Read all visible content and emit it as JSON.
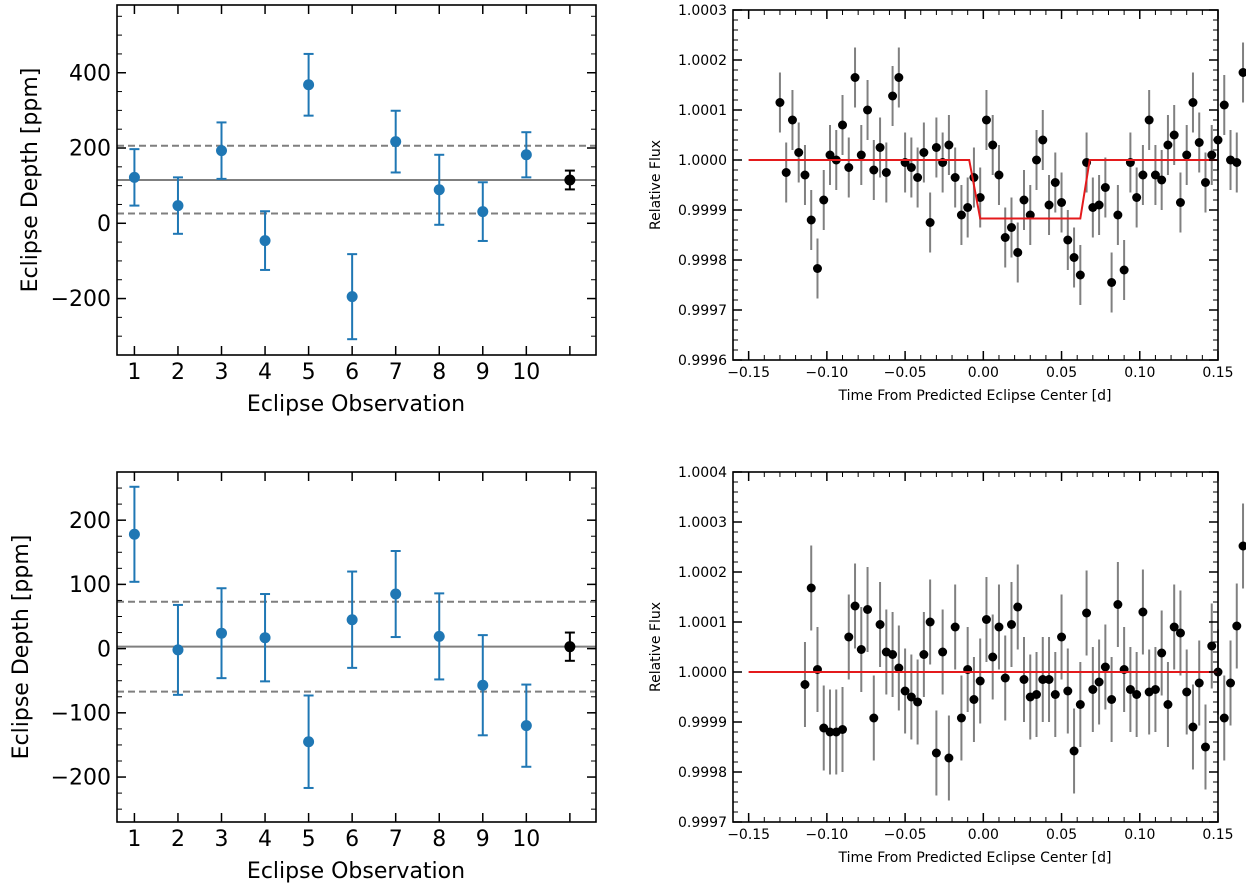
{
  "chart_data": [
    {
      "type": "scatter",
      "panel": "top-left",
      "xlabel": "Eclipse Observation",
      "ylabel": "Eclipse Depth [ppm]",
      "xticks": [
        "1",
        "2",
        "3",
        "4",
        "5",
        "6",
        "7",
        "8",
        "9",
        "10"
      ],
      "xlim": [
        0.6,
        11.6
      ],
      "ylim": [
        -350,
        580
      ],
      "yticks": [
        -200,
        0,
        200,
        400
      ],
      "ytick_labels": [
        "−200",
        "0",
        "200",
        "400"
      ],
      "minor_y_step": 50,
      "grid": false,
      "points": [
        {
          "x": 1,
          "y": 122,
          "err": 75
        },
        {
          "x": 2,
          "y": 47,
          "err": 75
        },
        {
          "x": 3,
          "y": 193,
          "err": 75
        },
        {
          "x": 4,
          "y": -46,
          "err": 78
        },
        {
          "x": 5,
          "y": 368,
          "err": 82
        },
        {
          "x": 6,
          "y": -195,
          "err": 113
        },
        {
          "x": 7,
          "y": 217,
          "err": 82
        },
        {
          "x": 8,
          "y": 89,
          "err": 93
        },
        {
          "x": 9,
          "y": 31,
          "err": 78
        },
        {
          "x": 10,
          "y": 182,
          "err": 60
        }
      ],
      "combined": {
        "x": 11,
        "y": 115,
        "err": 25
      },
      "mean_line": 115,
      "band_lines": [
        26,
        206
      ],
      "colors": {
        "points": "#1f77b4",
        "combined": "#000000",
        "lines": "#7f7f7f"
      }
    },
    {
      "type": "scatter",
      "panel": "top-right",
      "xlabel": "Time From Predicted Eclipse Center [d]",
      "ylabel": "Relative Flux",
      "xlim": [
        -0.16,
        0.15
      ],
      "xticks": [
        -0.15,
        -0.1,
        -0.05,
        0.0,
        0.05,
        0.1,
        0.15
      ],
      "xtick_labels": [
        "−0.15",
        "−0.10",
        "−0.05",
        "0.00",
        "0.05",
        "0.10",
        "0.15"
      ],
      "ylim": [
        0.9996,
        1.0003
      ],
      "yticks": [
        0.9996,
        0.9997,
        0.9998,
        0.9999,
        1.0,
        1.0001,
        1.0002,
        1.0003
      ],
      "ytick_labels": [
        "0.9996",
        "0.9997",
        "0.9998",
        "0.9999",
        "1.0000",
        "1.0001",
        "1.0002",
        "1.0003"
      ],
      "minor_x_step": 0.01,
      "minor_y_step": 2e-05,
      "grid": false,
      "x_start": -0.13,
      "x_step": 0.004,
      "yerr": 6e-05,
      "flux": [
        1.000115,
        0.999975,
        1.00008,
        1.000015,
        0.99997,
        0.99988,
        0.999783,
        0.99992,
        1.00001,
        1.0,
        1.00007,
        0.999985,
        1.000165,
        1.00001,
        1.0001,
        0.99998,
        1.000025,
        0.999975,
        1.000128,
        1.000165,
        0.999995,
        0.999985,
        0.999965,
        1.000015,
        0.999875,
        1.000025,
        0.999995,
        1.00003,
        0.999965,
        0.99989,
        0.999905,
        0.999965,
        0.999925,
        1.00008,
        1.00003,
        0.99997,
        0.999845,
        0.999865,
        0.999815,
        0.99992,
        0.99989,
        1.0,
        1.00004,
        0.99991,
        0.999955,
        0.999915,
        0.99984,
        0.999805,
        0.99977,
        0.999995,
        0.999905,
        0.99991,
        0.999945,
        0.999755,
        0.99989,
        0.99978,
        0.999995,
        0.999925,
        0.99997,
        1.00008,
        0.99997,
        0.99996,
        1.00003,
        1.00005,
        0.999915,
        1.00001,
        1.000115,
        1.000035,
        0.999955,
        1.00001,
        1.00004,
        1.00011,
        1.0,
        0.999995,
        1.000175
      ],
      "model": [
        [
          -0.15,
          1.0
        ],
        [
          -0.009,
          1.0
        ],
        [
          -0.002,
          0.999883
        ],
        [
          0.062,
          0.999883
        ],
        [
          0.068,
          1.0
        ],
        [
          0.15,
          1.0
        ]
      ],
      "colors": {
        "points": "#000000",
        "errorbars": "#808080",
        "model": "#e41a1c"
      }
    },
    {
      "type": "scatter",
      "panel": "bottom-left",
      "xlabel": "Eclipse Observation",
      "ylabel": "Eclipse Depth [ppm]",
      "xticks": [
        "1",
        "2",
        "3",
        "4",
        "5",
        "6",
        "7",
        "8",
        "9",
        "10"
      ],
      "xlim": [
        0.6,
        11.6
      ],
      "ylim": [
        -270,
        275
      ],
      "yticks": [
        -200,
        -100,
        0,
        100,
        200
      ],
      "ytick_labels": [
        "−200",
        "−100",
        "0",
        "100",
        "200"
      ],
      "minor_y_step": 25,
      "grid": false,
      "points": [
        {
          "x": 1,
          "y": 178,
          "err": 74
        },
        {
          "x": 2,
          "y": -2,
          "err": 70
        },
        {
          "x": 3,
          "y": 24,
          "err": 70
        },
        {
          "x": 4,
          "y": 17,
          "err": 68
        },
        {
          "x": 5,
          "y": -145,
          "err": 72
        },
        {
          "x": 6,
          "y": 45,
          "err": 75
        },
        {
          "x": 7,
          "y": 85,
          "err": 67
        },
        {
          "x": 8,
          "y": 19,
          "err": 67
        },
        {
          "x": 9,
          "y": -57,
          "err": 78
        },
        {
          "x": 10,
          "y": -120,
          "err": 64
        }
      ],
      "combined": {
        "x": 11,
        "y": 3,
        "err": 22
      },
      "mean_line": 3,
      "band_lines": [
        -67,
        73
      ],
      "colors": {
        "points": "#1f77b4",
        "combined": "#000000",
        "lines": "#7f7f7f"
      }
    },
    {
      "type": "scatter",
      "panel": "bottom-right",
      "xlabel": "Time From Predicted Eclipse Center [d]",
      "ylabel": "Relative Flux",
      "xlim": [
        -0.16,
        0.15
      ],
      "xticks": [
        -0.15,
        -0.1,
        -0.05,
        0.0,
        0.05,
        0.1,
        0.15
      ],
      "xtick_labels": [
        "−0.15",
        "−0.10",
        "−0.05",
        "0.00",
        "0.05",
        "0.10",
        "0.15"
      ],
      "ylim": [
        0.9997,
        1.0004
      ],
      "yticks": [
        0.9997,
        0.9998,
        0.9999,
        1.0,
        1.0001,
        1.0002,
        1.0003,
        1.0004
      ],
      "ytick_labels": [
        "0.9997",
        "0.9998",
        "0.9999",
        "1.0000",
        "1.0001",
        "1.0002",
        "1.0003",
        "1.0004"
      ],
      "minor_x_step": 0.01,
      "minor_y_step": 2e-05,
      "grid": false,
      "x_start": -0.114,
      "x_step": 0.004,
      "yerr": 8.5e-05,
      "flux": [
        0.999975,
        1.000168,
        1.000005,
        0.999888,
        0.99988,
        0.99988,
        0.999885,
        1.00007,
        1.000132,
        1.000045,
        1.000125,
        0.999908,
        1.000095,
        1.00004,
        1.000035,
        1.000008,
        0.999962,
        0.99995,
        0.99994,
        1.000035,
        1.0001,
        0.999838,
        1.00004,
        0.999828,
        1.00009,
        0.999908,
        1.000005,
        0.999945,
        0.999982,
        1.000105,
        1.00003,
        1.00009,
        0.999988,
        1.000095,
        1.00013,
        0.999985,
        0.99995,
        0.999955,
        0.999985,
        0.999985,
        0.999955,
        1.00007,
        0.999962,
        0.999842,
        0.999935,
        1.000118,
        0.999965,
        0.99998,
        1.00001,
        0.999945,
        1.000135,
        1.000005,
        0.999965,
        0.999955,
        1.00012,
        0.99996,
        0.999965,
        1.000038,
        0.999935,
        1.00009,
        1.000078,
        0.99996,
        0.99989,
        0.999978,
        0.99985,
        1.000052,
        1.0,
        0.999908,
        0.999978,
        1.000092,
        1.000252
      ],
      "model": [
        [
          -0.15,
          1.0
        ],
        [
          0.15,
          1.0
        ]
      ],
      "colors": {
        "points": "#000000",
        "errorbars": "#808080",
        "model": "#e41a1c"
      }
    }
  ]
}
